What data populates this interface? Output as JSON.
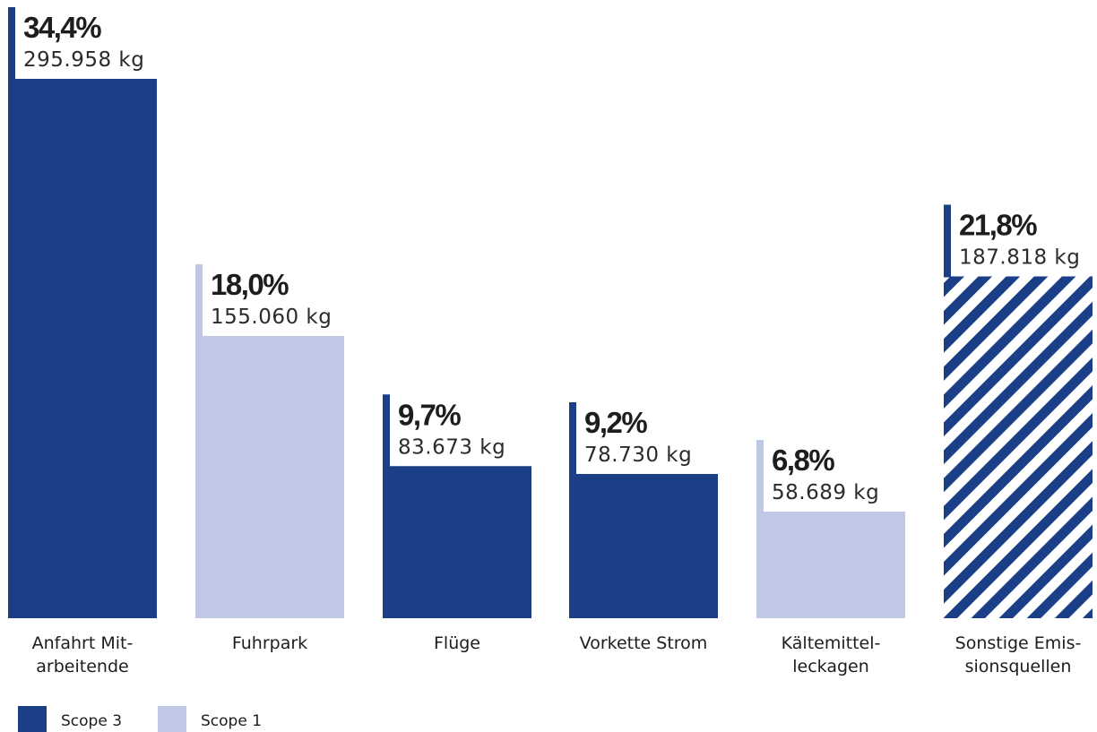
{
  "colors": {
    "scope3": "#1b3f87",
    "scope1": "#bfc8e6",
    "hatch_bg": "#ffffff"
  },
  "chart_data": {
    "type": "bar",
    "title": "",
    "xlabel": "",
    "ylabel": "",
    "ylim": [
      0,
      34.4
    ],
    "grid": false,
    "legend_position": "bottom-left",
    "bars": [
      {
        "category_lines": [
          "Anfahrt Mit-",
          "arbeitende"
        ],
        "percent": 34.4,
        "percent_label": "34,4%",
        "kg": 295958,
        "kg_label": "295.958 kg",
        "scope": "Scope 3",
        "style": "scope3"
      },
      {
        "category_lines": [
          "Fuhrpark"
        ],
        "percent": 18.0,
        "percent_label": "18,0%",
        "kg": 155060,
        "kg_label": "155.060 kg",
        "scope": "Scope 1",
        "style": "scope1"
      },
      {
        "category_lines": [
          "Flüge"
        ],
        "percent": 9.7,
        "percent_label": "9,7%",
        "kg": 83673,
        "kg_label": "83.673 kg",
        "scope": "Scope 3",
        "style": "scope3"
      },
      {
        "category_lines": [
          "Vorkette Strom"
        ],
        "percent": 9.2,
        "percent_label": "9,2%",
        "kg": 78730,
        "kg_label": "78.730 kg",
        "scope": "Scope 3",
        "style": "scope3"
      },
      {
        "category_lines": [
          "Kältemittel-",
          "leckagen"
        ],
        "percent": 6.8,
        "percent_label": "6,8%",
        "kg": 58689,
        "kg_label": "58.689 kg",
        "scope": "Scope 1",
        "style": "scope1"
      },
      {
        "category_lines": [
          "Sonstige Emis-",
          "sionsquellen"
        ],
        "percent": 21.8,
        "percent_label": "21,8%",
        "kg": 187818,
        "kg_label": "187.818 kg",
        "scope": "",
        "style": "hatched"
      }
    ],
    "legend": [
      {
        "label": "Scope 3",
        "style": "scope3"
      },
      {
        "label": "Scope 1",
        "style": "scope1"
      }
    ]
  }
}
